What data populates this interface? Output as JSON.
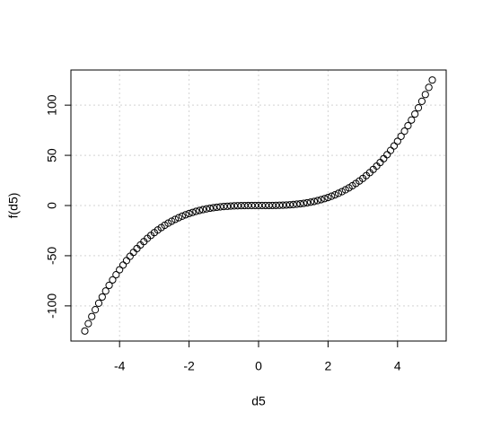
{
  "chart_data": {
    "type": "scatter",
    "x_label": "d5",
    "y_label": "f(d5)",
    "x": [
      -5,
      -4.9,
      -4.8,
      -4.7,
      -4.6,
      -4.5,
      -4.4,
      -4.3,
      -4.2,
      -4.1,
      -4,
      -3.9,
      -3.8,
      -3.7,
      -3.6,
      -3.5,
      -3.4,
      -3.3,
      -3.2,
      -3.1,
      -3,
      -2.9,
      -2.8,
      -2.7,
      -2.6,
      -2.5,
      -2.4,
      -2.3,
      -2.2,
      -2.1,
      -2,
      -1.9,
      -1.8,
      -1.7,
      -1.6,
      -1.5,
      -1.4,
      -1.3,
      -1.2,
      -1.1,
      -1,
      -0.9,
      -0.8,
      -0.7,
      -0.6,
      -0.5,
      -0.4,
      -0.3,
      -0.2,
      -0.1,
      0,
      0.1,
      0.2,
      0.3,
      0.4,
      0.5,
      0.6,
      0.7,
      0.8,
      0.9,
      1,
      1.1,
      1.2,
      1.3,
      1.4,
      1.5,
      1.6,
      1.7,
      1.8,
      1.9,
      2,
      2.1,
      2.2,
      2.3,
      2.4,
      2.5,
      2.6,
      2.7,
      2.8,
      2.9,
      3,
      3.1,
      3.2,
      3.3,
      3.4,
      3.5,
      3.6,
      3.7,
      3.8,
      3.9,
      4,
      4.1,
      4.2,
      4.3,
      4.4,
      4.5,
      4.6,
      4.7,
      4.8,
      4.9,
      5
    ],
    "values": [
      -125,
      -117.649,
      -110.592,
      -103.823,
      -97.336,
      -91.125,
      -85.184,
      -79.507,
      -74.088,
      -68.921,
      -64,
      -59.319,
      -54.872,
      -50.653,
      -46.656,
      -42.875,
      -39.304,
      -35.937,
      -32.768,
      -29.791,
      -27,
      -24.389,
      -21.952,
      -19.683,
      -17.576,
      -15.625,
      -13.824,
      -12.167,
      -10.648,
      -9.261,
      -8,
      -6.859,
      -5.832,
      -4.913,
      -4.096,
      -3.375,
      -2.744,
      -2.197,
      -1.728,
      -1.331,
      -1,
      -0.729,
      -0.512,
      -0.343,
      -0.216,
      -0.125,
      -0.064,
      -0.027,
      -0.008,
      -0.001,
      0,
      0.001,
      0.008,
      0.027,
      0.064,
      0.125,
      0.216,
      0.343,
      0.512,
      0.729,
      1,
      1.331,
      1.728,
      2.197,
      2.744,
      3.375,
      4.096,
      4.913,
      5.832,
      6.859,
      8,
      9.261,
      10.648,
      12.167,
      13.824,
      15.625,
      17.576,
      19.683,
      21.952,
      24.389,
      27,
      29.791,
      32.768,
      35.937,
      39.304,
      42.875,
      46.656,
      50.653,
      54.872,
      59.319,
      64,
      68.921,
      74.088,
      79.507,
      85.184,
      91.125,
      97.336,
      103.823,
      110.592,
      117.649,
      125
    ],
    "color": "#000000",
    "xlim": [
      -5.4,
      5.4
    ],
    "xticks": [
      -4,
      -2,
      0,
      2,
      4
    ],
    "ylim": [
      -135,
      135
    ],
    "yticks": [
      -100,
      -50,
      0,
      50,
      100
    ],
    "grid": true
  }
}
